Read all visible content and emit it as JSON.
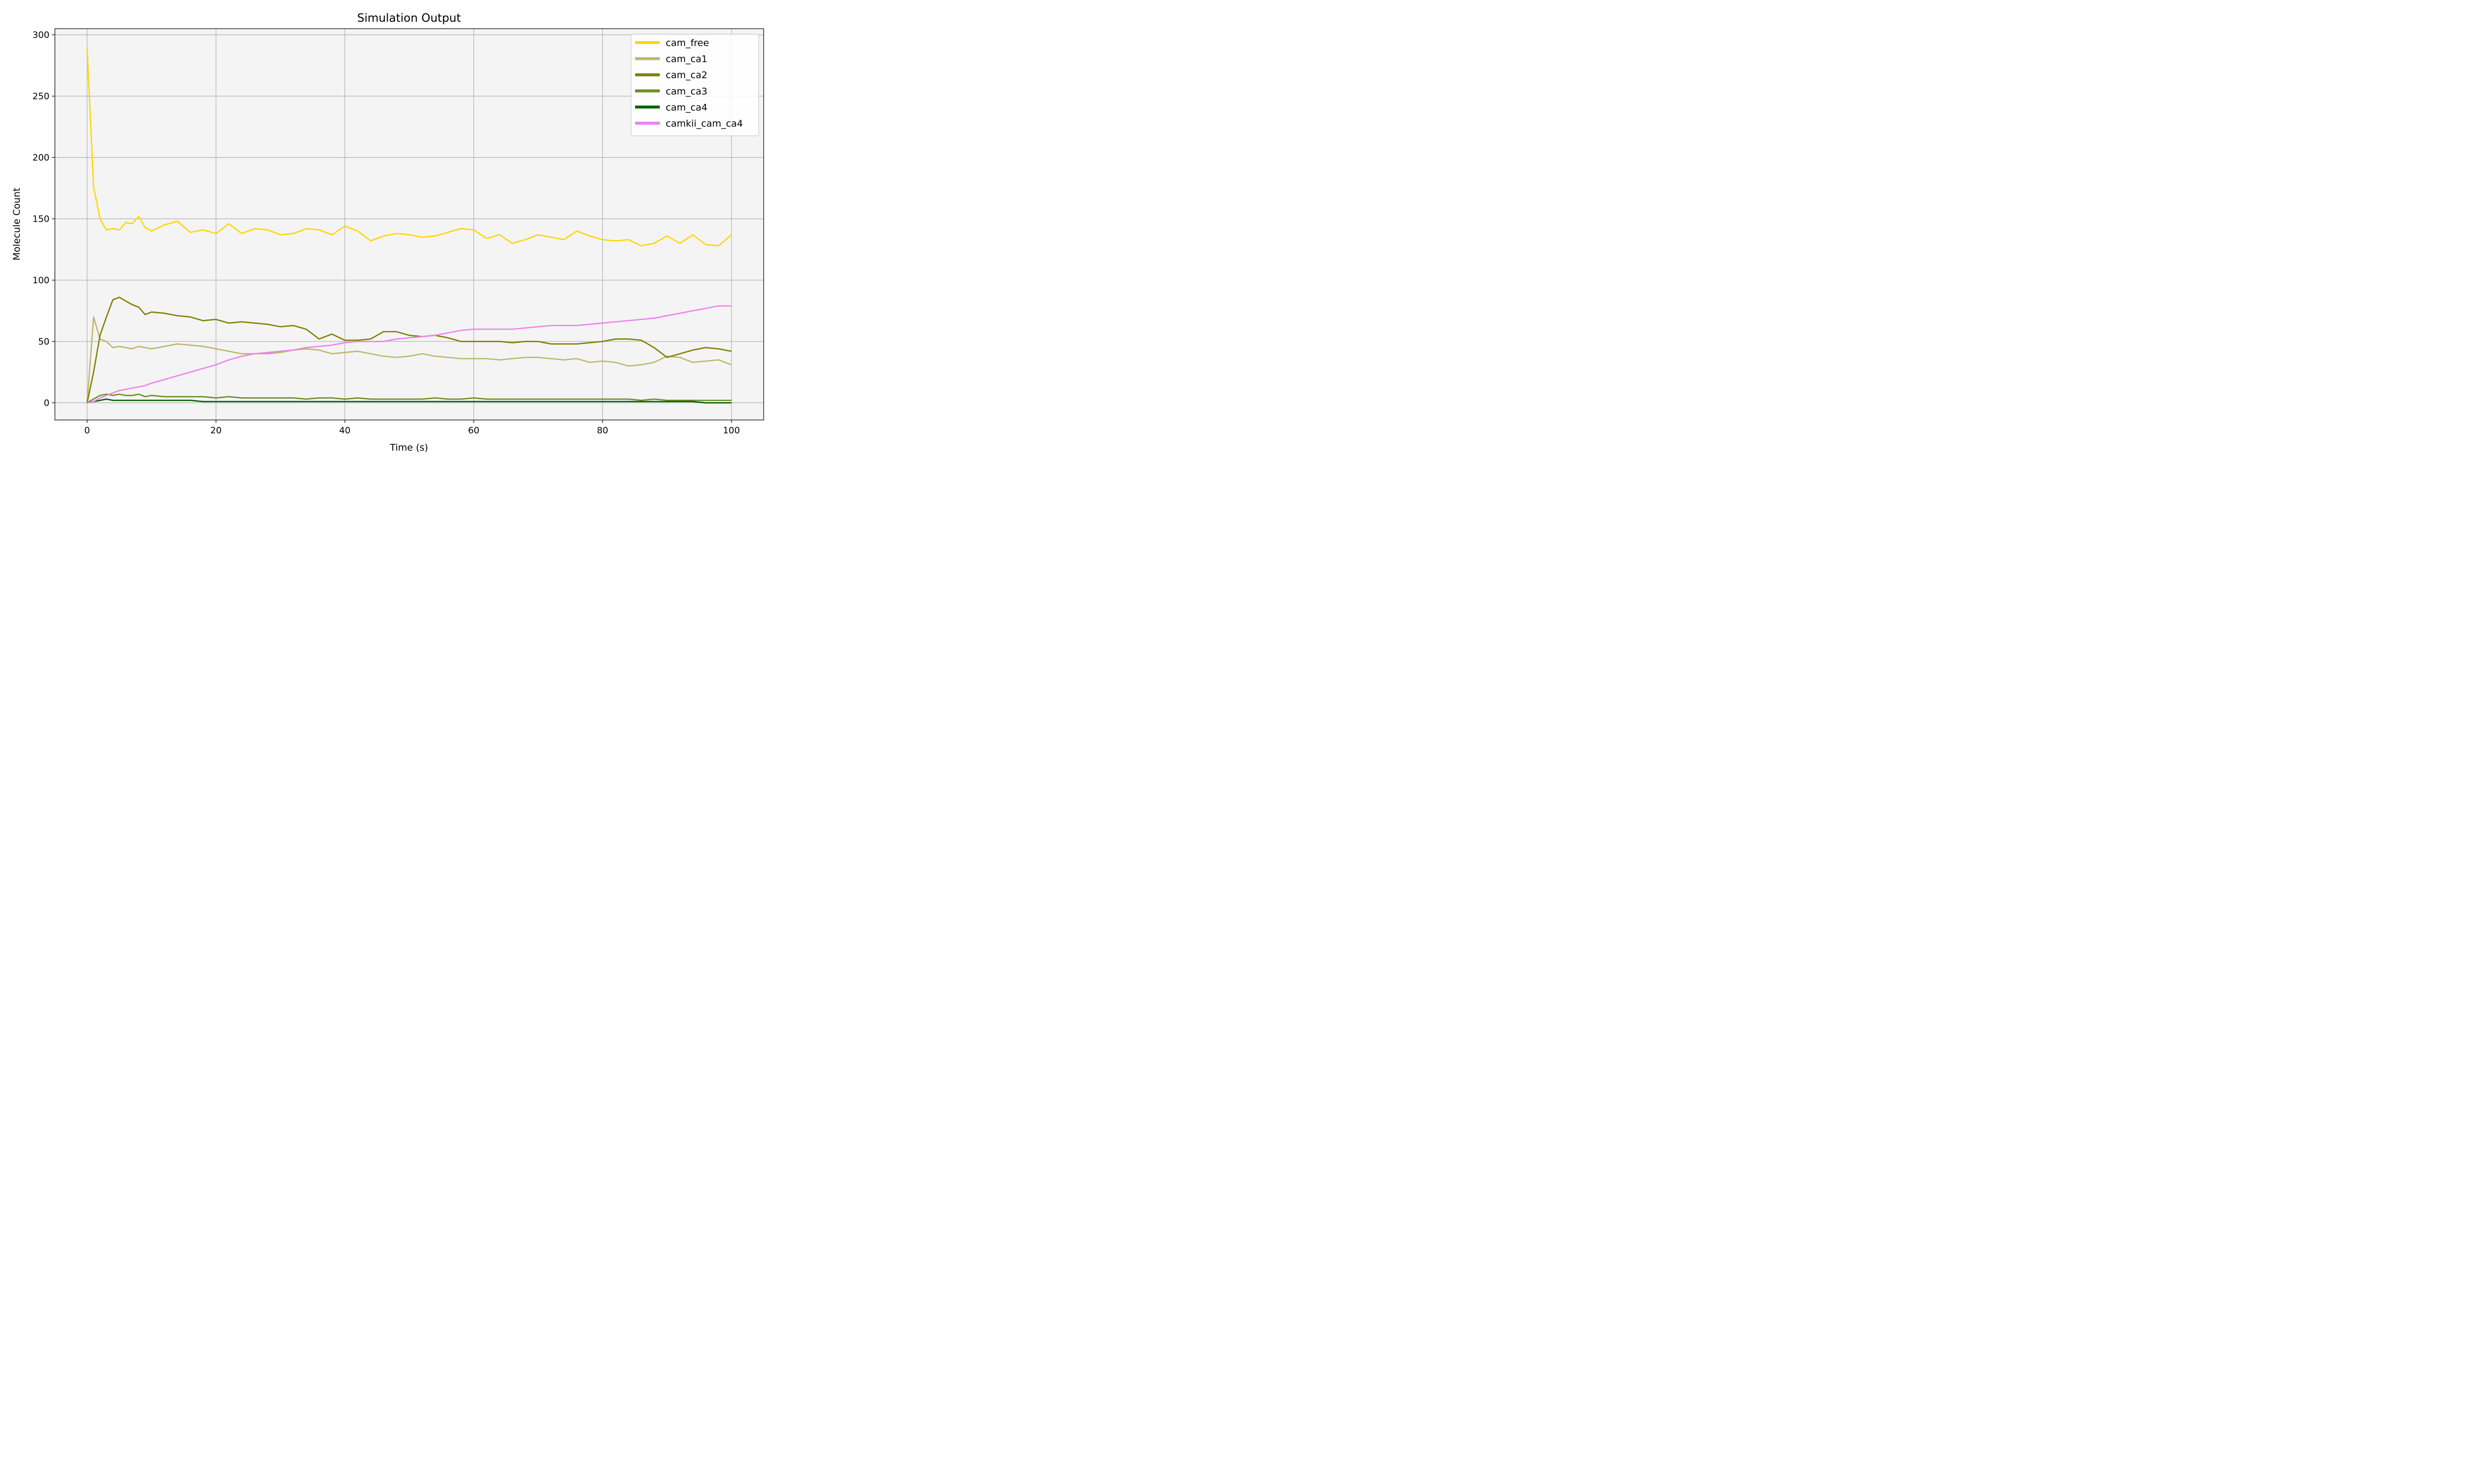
{
  "chart_data": {
    "type": "line",
    "title": "Simulation Output",
    "xlabel": "Time (s)",
    "ylabel": "Molecule Count",
    "xlim": [
      -5,
      105
    ],
    "ylim": [
      -14,
      305
    ],
    "xticks": [
      0,
      20,
      40,
      60,
      80,
      100
    ],
    "yticks": [
      0,
      50,
      100,
      150,
      200,
      250,
      300
    ],
    "grid": true,
    "background": "#f4f4f4",
    "legend_position": "top-right",
    "x": [
      0,
      1,
      2,
      3,
      4,
      5,
      6,
      7,
      8,
      9,
      10,
      12,
      14,
      16,
      18,
      20,
      22,
      24,
      26,
      28,
      30,
      32,
      34,
      36,
      38,
      40,
      42,
      44,
      46,
      48,
      50,
      52,
      54,
      56,
      58,
      60,
      62,
      64,
      66,
      68,
      70,
      72,
      74,
      76,
      78,
      80,
      82,
      84,
      86,
      88,
      90,
      92,
      94,
      96,
      98,
      100
    ],
    "series": [
      {
        "name": "cam_free",
        "color": "#FFD700",
        "values": [
          290,
          176,
          150,
          141,
          142,
          141,
          147,
          146,
          152,
          143,
          140,
          145,
          148,
          139,
          141,
          138,
          146,
          138,
          142,
          141,
          137,
          138,
          142,
          141,
          137,
          144,
          140,
          132,
          136,
          138,
          137,
          135,
          136,
          139,
          142,
          141,
          134,
          137,
          130,
          133,
          137,
          135,
          133,
          140,
          136,
          133,
          132,
          133,
          128,
          130,
          136,
          130,
          137,
          129,
          128,
          137
        ]
      },
      {
        "name": "cam_ca1",
        "color": "#BDB76B",
        "values": [
          0,
          70,
          52,
          50,
          45,
          46,
          45,
          44,
          46,
          45,
          44,
          46,
          48,
          47,
          46,
          44,
          42,
          40,
          40,
          40,
          41,
          43,
          44,
          43,
          40,
          41,
          42,
          40,
          38,
          37,
          38,
          40,
          38,
          37,
          36,
          36,
          36,
          35,
          36,
          37,
          37,
          36,
          35,
          36,
          33,
          34,
          33,
          30,
          31,
          33,
          38,
          37,
          33,
          34,
          35,
          31
        ]
      },
      {
        "name": "cam_ca2",
        "color": "#808000",
        "values": [
          0,
          25,
          55,
          70,
          84,
          86,
          83,
          80,
          78,
          72,
          74,
          73,
          71,
          70,
          67,
          68,
          65,
          66,
          65,
          64,
          62,
          63,
          60,
          52,
          56,
          51,
          51,
          52,
          58,
          58,
          55,
          54,
          55,
          53,
          50,
          50,
          50,
          50,
          49,
          50,
          50,
          48,
          48,
          48,
          49,
          50,
          52,
          52,
          51,
          45,
          37,
          40,
          43,
          45,
          44,
          42
        ]
      },
      {
        "name": "cam_ca3",
        "color": "#6B8E23",
        "values": [
          0,
          3,
          6,
          7,
          6,
          7,
          6,
          6,
          7,
          5,
          6,
          5,
          5,
          5,
          5,
          4,
          5,
          4,
          4,
          4,
          4,
          4,
          3,
          4,
          4,
          3,
          4,
          3,
          3,
          3,
          3,
          3,
          4,
          3,
          3,
          4,
          3,
          3,
          3,
          3,
          3,
          3,
          3,
          3,
          3,
          3,
          3,
          3,
          2,
          3,
          2,
          2,
          2,
          2,
          2,
          2
        ]
      },
      {
        "name": "cam_ca4",
        "color": "#006400",
        "values": [
          0,
          1,
          2,
          3,
          2,
          2,
          2,
          2,
          2,
          2,
          2,
          2,
          2,
          2,
          1,
          1,
          1,
          1,
          1,
          1,
          1,
          1,
          1,
          1,
          1,
          1,
          1,
          1,
          1,
          1,
          1,
          1,
          1,
          1,
          1,
          1,
          1,
          1,
          1,
          1,
          1,
          1,
          1,
          1,
          1,
          1,
          1,
          1,
          1,
          1,
          1,
          1,
          1,
          0,
          0,
          0
        ]
      },
      {
        "name": "camkii_cam_ca4",
        "color": "#EE82EE",
        "values": [
          0,
          1,
          4,
          6,
          8,
          10,
          11,
          12,
          13,
          14,
          16,
          19,
          22,
          25,
          28,
          31,
          35,
          38,
          40,
          41,
          42,
          43,
          45,
          46,
          47,
          49,
          50,
          50,
          50,
          52,
          53,
          54,
          55,
          57,
          59,
          60,
          60,
          60,
          60,
          61,
          62,
          63,
          63,
          63,
          64,
          65,
          66,
          67,
          68,
          69,
          71,
          73,
          75,
          77,
          79,
          79
        ]
      }
    ]
  }
}
